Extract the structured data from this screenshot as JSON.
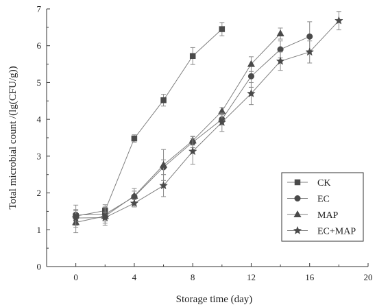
{
  "chart_data": {
    "type": "line",
    "xlabel": "Storage time (day)",
    "ylabel": "Total microbial count /(lg(CFU/g))",
    "xlim": [
      -2,
      20
    ],
    "ylim": [
      0,
      7
    ],
    "xticks": [
      0,
      4,
      8,
      12,
      16,
      20
    ],
    "yticks": [
      0,
      1,
      2,
      3,
      4,
      5,
      6,
      7
    ],
    "grid": false,
    "legend_position": "bottom-right",
    "series": [
      {
        "name": "CK",
        "marker": "square",
        "x": [
          0,
          2,
          4,
          6,
          8,
          10
        ],
        "y": [
          1.37,
          1.52,
          3.48,
          4.52,
          5.72,
          6.45
        ],
        "err": [
          0.3,
          0.16,
          0.1,
          0.16,
          0.23,
          0.18
        ]
      },
      {
        "name": "EC",
        "marker": "circle",
        "x": [
          0,
          2,
          4,
          6,
          8,
          10,
          12,
          14,
          16
        ],
        "y": [
          1.4,
          1.42,
          1.9,
          2.7,
          3.38,
          4.0,
          5.17,
          5.9,
          6.25
        ],
        "err": [
          0.15,
          0.18,
          0.15,
          0.2,
          0.15,
          0.15,
          0.3,
          0.23,
          0.4
        ]
      },
      {
        "name": "MAP",
        "marker": "triangle",
        "x": [
          0,
          2,
          4,
          6,
          8,
          10,
          12,
          14
        ],
        "y": [
          1.2,
          1.37,
          1.92,
          2.76,
          3.42,
          4.22,
          5.5,
          6.33
        ],
        "err": [
          0.28,
          0.25,
          0.2,
          0.42,
          0.12,
          0.1,
          0.2,
          0.15
        ]
      },
      {
        "name": "EC+MAP",
        "marker": "star",
        "x": [
          0,
          2,
          4,
          6,
          8,
          10,
          12,
          14,
          16,
          18
        ],
        "y": [
          1.32,
          1.33,
          1.72,
          2.2,
          3.13,
          3.92,
          4.7,
          5.58,
          5.83,
          6.68
        ],
        "err": [
          0.2,
          0.15,
          0.1,
          0.3,
          0.35,
          0.25,
          0.3,
          0.25,
          0.3,
          0.25
        ]
      }
    ]
  },
  "colors": {
    "marker": "#4a4a4a",
    "line": "#7f7f7f",
    "error_bar": "#8a8a8a",
    "axis": "#333333"
  }
}
